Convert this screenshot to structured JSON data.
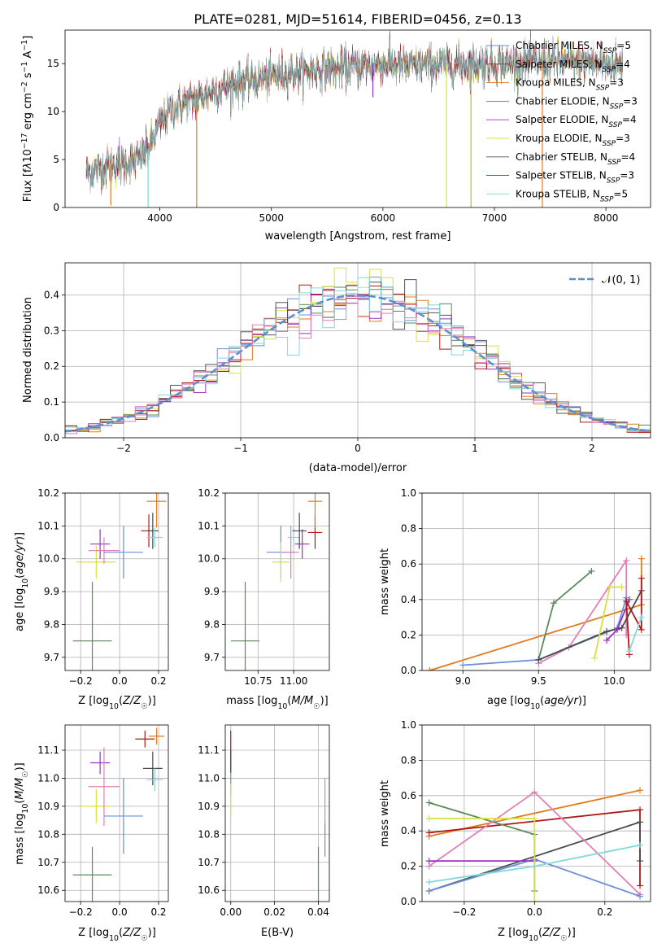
{
  "title": "PLATE=0281, MJD=51614, FIBERID=0456, z=0.13",
  "colors": {
    "Chabrier MILES": "#6a8fd8",
    "Salpeter MILES": "#4a4a4a",
    "Kroupa MILES": "#e07b20",
    "Chabrier ELODIE": "#5a8a5a",
    "Salpeter ELODIE": "#9b30c0",
    "Kroupa ELODIE": "#d8e040",
    "Chabrier STELIB": "#555555",
    "Salpeter STELIB": "#b01818",
    "Kroupa STELIB": "#80d8dc",
    "pink": "#e080b8"
  },
  "chart_data": [
    {
      "type": "line",
      "panel": "spectrum",
      "xlabel": "wavelength [Angstrom, rest frame]",
      "ylabel": "Flux [fλ10⁻¹⁷ erg cm⁻² s⁻¹ A⁻¹]",
      "xlim": [
        3150,
        8400
      ],
      "ylim": [
        0,
        18.5
      ],
      "xticks": [
        4000,
        5000,
        6000,
        7000,
        8000
      ],
      "yticks": [
        0,
        5,
        10,
        15
      ],
      "legend": [
        "Chabrier MILES, N_SSP=5",
        "Salpeter MILES, N_SSP=4",
        "Kroupa MILES, N_SSP=3",
        "Chabrier ELODIE, N_SSP=3",
        "Salpeter ELODIE, N_SSP=4",
        "Kroupa ELODIE, N_SSP=3",
        "Chabrier STELIB, N_SSP=4",
        "Salpeter STELIB, N_SSP=3",
        "Kroupa STELIB, N_SSP=5"
      ],
      "legend_display": [
        {
          "pre": "Chabrier MILES, N",
          "sub": "SSP",
          "post": "=5"
        },
        {
          "pre": "Salpeter MILES, N",
          "sub": "SSP",
          "post": "=4"
        },
        {
          "pre": "Kroupa MILES, N",
          "sub": "SSP",
          "post": "=3"
        },
        {
          "pre": "Chabrier ELODIE, N",
          "sub": "SSP",
          "post": "=3"
        },
        {
          "pre": "Salpeter ELODIE, N",
          "sub": "SSP",
          "post": "=4"
        },
        {
          "pre": "Kroupa ELODIE, N",
          "sub": "SSP",
          "post": "=3"
        },
        {
          "pre": "Chabrier STELIB, N",
          "sub": "SSP",
          "post": "=4"
        },
        {
          "pre": "Salpeter STELIB, N",
          "sub": "SSP",
          "post": "=3"
        },
        {
          "pre": "Kroupa STELIB, N",
          "sub": "SSP",
          "post": "=5"
        }
      ],
      "legend_colors": [
        "#6a8fd8",
        "#4a4a4a",
        "#e07b20",
        "#5a8a5a",
        "#9b30c0",
        "#d8e040",
        "#555555",
        "#b01818",
        "#80d8dc"
      ],
      "legend_placement": "upper right",
      "continuum": {
        "x": [
          3340,
          3500,
          3650,
          3800,
          3900,
          4000,
          4100,
          4200,
          4350,
          4500,
          4700,
          4900,
          5100,
          5300,
          5500,
          5800,
          6000,
          6200,
          6500,
          7000,
          7500,
          8000,
          8150
        ],
        "y": [
          3.6,
          4.2,
          4.6,
          4.9,
          6.2,
          8.8,
          10.2,
          10.8,
          11.4,
          12.2,
          13.0,
          13.4,
          13.9,
          14.2,
          14.4,
          14.7,
          15.0,
          14.8,
          14.9,
          15.0,
          15.2,
          15.0,
          14.9
        ]
      },
      "glitches": [
        {
          "x": 3560,
          "y_min": 0.2
        },
        {
          "x": 3895,
          "y_min": 0
        },
        {
          "x": 4330,
          "y_min": 0
        },
        {
          "x": 5910,
          "y_min": 11.5
        },
        {
          "x": 6570,
          "y_min": 0
        },
        {
          "x": 6790,
          "y_min": 0
        },
        {
          "x": 7430,
          "y_min": 0
        }
      ]
    },
    {
      "type": "area",
      "panel": "residuals",
      "xlabel": "(data-model)/error",
      "ylabel": "Normed distribution",
      "xlim": [
        -2.5,
        2.5
      ],
      "ylim": [
        0,
        0.49
      ],
      "xticks": [
        -2,
        -1,
        0,
        1,
        2
      ],
      "yticks": [
        0.0,
        0.1,
        0.2,
        0.3,
        0.4
      ],
      "grid": true,
      "bin_width": 0.1,
      "legend": [
        {
          "label": "𝒩(0, 1)",
          "style": "dashed",
          "color": "#5a8fd8"
        }
      ],
      "legend_placement": "upper right",
      "normal": {
        "mu": 0,
        "sigma": 1
      },
      "series_colors": [
        "#6a8fd8",
        "#e07b20",
        "#5a8a5a",
        "#9b30c0",
        "#d8e040",
        "#555555",
        "#b01818",
        "#80d8dc",
        "#e080b8"
      ]
    },
    {
      "type": "scatter",
      "panel": "age-vs-Z",
      "xlabel": "Z [log₁₀(Z/Z☉)]",
      "ylabel": "age  [log₁₀(age/yr)]",
      "xlim": [
        -0.28,
        0.25
      ],
      "ylim": [
        9.66,
        10.2
      ],
      "xticks": [
        -0.2,
        0.0,
        0.2
      ],
      "yticks": [
        9.7,
        9.8,
        9.9,
        10.0,
        10.1,
        10.2
      ],
      "points": [
        {
          "x": -0.14,
          "y": 9.75,
          "xe": 0.1,
          "ye": 0.18,
          "c": "#5a8a5a"
        },
        {
          "x": -0.1,
          "y": 10.045,
          "xe": 0.05,
          "ye": 0.045,
          "c": "#9b30c0"
        },
        {
          "x": -0.12,
          "y": 9.99,
          "xe": 0.1,
          "ye": 0.05,
          "c": "#d8e040"
        },
        {
          "x": -0.08,
          "y": 10.025,
          "xe": 0.08,
          "ye": 0.04,
          "c": "#e080b8"
        },
        {
          "x": 0.02,
          "y": 10.02,
          "xe": 0.1,
          "ye": 0.08,
          "c": "#6a8fd8"
        },
        {
          "x": 0.15,
          "y": 10.085,
          "xe": 0.04,
          "ye": 0.05,
          "c": "#b01818"
        },
        {
          "x": 0.17,
          "y": 10.085,
          "xe": 0.03,
          "ye": 0.055,
          "c": "#4a4a4a"
        },
        {
          "x": 0.18,
          "y": 10.065,
          "xe": 0.04,
          "ye": 0.03,
          "c": "#80d8dc"
        },
        {
          "x": 0.19,
          "y": 10.175,
          "xe": 0.05,
          "ye": 0.08,
          "c": "#e07b20"
        }
      ]
    },
    {
      "type": "scatter",
      "panel": "age-vs-mass",
      "xlabel": "mass [log₁₀(M/M☉)]",
      "ylabel": "",
      "xlim": [
        10.52,
        11.25
      ],
      "ylim": [
        9.66,
        10.2
      ],
      "xticks": [
        10.75,
        11.0
      ],
      "yticks": [
        9.7,
        9.8,
        9.9,
        10.0,
        10.1,
        10.2
      ],
      "points": [
        {
          "x": 10.66,
          "y": 9.75,
          "xe": 0.1,
          "ye": 0.18,
          "c": "#5a8a5a"
        },
        {
          "x": 10.91,
          "y": 10.02,
          "xe": 0.1,
          "ye": 0.08,
          "c": "#6a8fd8"
        },
        {
          "x": 10.91,
          "y": 9.99,
          "xe": 0.06,
          "ye": 0.06,
          "c": "#d8e040"
        },
        {
          "x": 10.98,
          "y": 10.02,
          "xe": 0.06,
          "ye": 0.08,
          "c": "#e080b8"
        },
        {
          "x": 11.0,
          "y": 10.065,
          "xe": 0.04,
          "ye": 0.03,
          "c": "#80d8dc"
        },
        {
          "x": 11.06,
          "y": 10.045,
          "xe": 0.05,
          "ye": 0.045,
          "c": "#9b30c0"
        },
        {
          "x": 11.04,
          "y": 10.085,
          "xe": 0.05,
          "ye": 0.055,
          "c": "#4a4a4a"
        },
        {
          "x": 11.15,
          "y": 10.08,
          "xe": 0.05,
          "ye": 0.05,
          "c": "#b01818"
        },
        {
          "x": 11.15,
          "y": 10.175,
          "xe": 0.05,
          "ye": 0.08,
          "c": "#e07b20"
        }
      ]
    },
    {
      "type": "line",
      "panel": "mass-weight-vs-age",
      "xlabel": "age  [log₁₀(age/yr)]",
      "ylabel": "mass weight",
      "xlim": [
        8.73,
        10.24
      ],
      "ylim": [
        0.0,
        1.0
      ],
      "xticks": [
        9.0,
        9.5,
        10.0
      ],
      "yticks": [
        0.0,
        0.2,
        0.4,
        0.6,
        0.8,
        1.0
      ],
      "grid": true,
      "series": [
        {
          "c": "#e07b20",
          "x": [
            8.78,
            10.18,
            10.18
          ],
          "y": [
            0.0,
            0.37,
            0.63
          ]
        },
        {
          "c": "#5a8a5a",
          "x": [
            9.5,
            9.6,
            9.85
          ],
          "y": [
            0.06,
            0.38,
            0.56
          ]
        },
        {
          "c": "#e080b8",
          "x": [
            9.5,
            9.7,
            10.08,
            10.08
          ],
          "y": [
            0.04,
            0.13,
            0.62,
            0.2
          ]
        },
        {
          "c": "#6a8fd8",
          "x": [
            9.0,
            9.5,
            10.02,
            10.08
          ],
          "y": [
            0.03,
            0.06,
            0.24,
            0.41
          ]
        },
        {
          "c": "#4a4a4a",
          "x": [
            9.5,
            9.95,
            10.05,
            10.18
          ],
          "y": [
            0.06,
            0.22,
            0.24,
            0.45
          ]
        },
        {
          "c": "#9b30c0",
          "x": [
            9.95,
            10.02,
            10.1
          ],
          "y": [
            0.17,
            0.23,
            0.4
          ]
        },
        {
          "c": "#d8e040",
          "x": [
            9.87,
            9.97,
            10.05
          ],
          "y": [
            0.07,
            0.47,
            0.47
          ]
        },
        {
          "c": "#b01818",
          "x": [
            10.1,
            10.08,
            10.18,
            10.18
          ],
          "y": [
            0.09,
            0.39,
            0.23,
            0.52
          ]
        },
        {
          "c": "#80d8dc",
          "x": [
            10.1,
            10.18
          ],
          "y": [
            0.11,
            0.3
          ]
        }
      ]
    },
    {
      "type": "scatter",
      "panel": "mass-vs-Z",
      "xlabel": "Z [log₁₀(Z/Z☉)]",
      "ylabel": "mass [log₁₀(M/M☉)]",
      "xlim": [
        -0.28,
        0.25
      ],
      "ylim": [
        10.56,
        11.19
      ],
      "xticks": [
        -0.2,
        0.0,
        0.2
      ],
      "yticks": [
        10.6,
        10.7,
        10.8,
        10.9,
        11.0,
        11.1
      ],
      "points": [
        {
          "x": -0.14,
          "y": 10.655,
          "xe": 0.1,
          "ye": 0.1,
          "c": "#5a8a5a"
        },
        {
          "x": -0.1,
          "y": 11.055,
          "xe": 0.05,
          "ye": 0.04,
          "c": "#9b30c0"
        },
        {
          "x": -0.12,
          "y": 10.9,
          "xe": 0.08,
          "ye": 0.06,
          "c": "#d8e040"
        },
        {
          "x": -0.08,
          "y": 10.97,
          "xe": 0.08,
          "ye": 0.14,
          "c": "#e080b8"
        },
        {
          "x": 0.02,
          "y": 10.865,
          "xe": 0.1,
          "ye": 0.135,
          "c": "#6a8fd8"
        },
        {
          "x": 0.13,
          "y": 11.14,
          "xe": 0.05,
          "ye": 0.03,
          "c": "#b01818"
        },
        {
          "x": 0.17,
          "y": 11.035,
          "xe": 0.05,
          "ye": 0.06,
          "c": "#4a4a4a"
        },
        {
          "x": 0.18,
          "y": 10.995,
          "xe": 0.04,
          "ye": 0.04,
          "c": "#80d8dc"
        },
        {
          "x": 0.19,
          "y": 11.15,
          "xe": 0.04,
          "ye": 0.03,
          "c": "#e07b20"
        }
      ]
    },
    {
      "type": "scatter",
      "panel": "mass-vs-EBV",
      "xlabel": "E(B-V)",
      "ylabel": "",
      "xlim": [
        -0.0025,
        0.045
      ],
      "ylim": [
        10.56,
        11.19
      ],
      "xticks": [
        0.0,
        0.02,
        0.04
      ],
      "yticks": [
        10.6,
        10.7,
        10.8,
        10.9,
        11.0,
        11.1
      ],
      "points": [
        {
          "x": 0.0,
          "y": 11.1,
          "xe": 0,
          "ye": 0.07,
          "c": "#b01818"
        },
        {
          "x": 0.0,
          "y": 11.0,
          "xe": 0,
          "ye": 0.06,
          "c": "#6a8fd8"
        },
        {
          "x": 0.0,
          "y": 10.92,
          "xe": 0,
          "ye": 0.06,
          "c": "#d8e040"
        },
        {
          "x": 0.0,
          "y": 11.06,
          "xe": 0,
          "ye": 0.04,
          "c": "#4a4a4a"
        },
        {
          "x": 0.04,
          "y": 10.655,
          "xe": 0,
          "ye": 0.1,
          "c": "#5a8a5a"
        },
        {
          "x": 0.043,
          "y": 10.9,
          "xe": 0,
          "ye": 0.1,
          "c": "#e080b8"
        },
        {
          "x": 0.043,
          "y": 10.78,
          "xe": 0,
          "ye": 0.06,
          "c": "#6a8fd8"
        }
      ]
    },
    {
      "type": "line",
      "panel": "mass-weight-vs-Z",
      "xlabel": "Z [log₁₀(Z/Z☉)]",
      "ylabel": "mass weight",
      "xlim": [
        -0.32,
        0.33
      ],
      "ylim": [
        0.0,
        1.0
      ],
      "xticks": [
        -0.2,
        0.0,
        0.2
      ],
      "yticks": [
        0.0,
        0.2,
        0.4,
        0.6,
        0.8,
        1.0
      ],
      "grid": true,
      "series": [
        {
          "c": "#e07b20",
          "x": [
            -0.3,
            0.3
          ],
          "y": [
            0.37,
            0.63
          ]
        },
        {
          "c": "#b01818",
          "x": [
            -0.3,
            0.3,
            0.3
          ],
          "y": [
            0.39,
            0.52,
            0.09
          ]
        },
        {
          "c": "#4a4a4a",
          "x": [
            -0.3,
            0.3,
            0.3
          ],
          "y": [
            0.06,
            0.45,
            0.23
          ]
        },
        {
          "c": "#5a8a5a",
          "x": [
            -0.3,
            0.0,
            0.0
          ],
          "y": [
            0.56,
            0.38,
            0.06
          ]
        },
        {
          "c": "#e080b8",
          "x": [
            -0.3,
            0.0,
            0.3
          ],
          "y": [
            0.2,
            0.62,
            0.04
          ]
        },
        {
          "c": "#6a8fd8",
          "x": [
            -0.3,
            0.0,
            0.3
          ],
          "y": [
            0.06,
            0.24,
            0.03
          ]
        },
        {
          "c": "#9b30c0",
          "x": [
            -0.3,
            0.0
          ],
          "y": [
            0.23,
            0.23
          ]
        },
        {
          "c": "#d8e040",
          "x": [
            -0.3,
            0.0,
            0.0
          ],
          "y": [
            0.47,
            0.47,
            0.0
          ]
        },
        {
          "c": "#80d8dc",
          "x": [
            -0.3,
            0.0,
            0.3
          ],
          "y": [
            0.11,
            0.2,
            0.32
          ]
        }
      ]
    }
  ]
}
